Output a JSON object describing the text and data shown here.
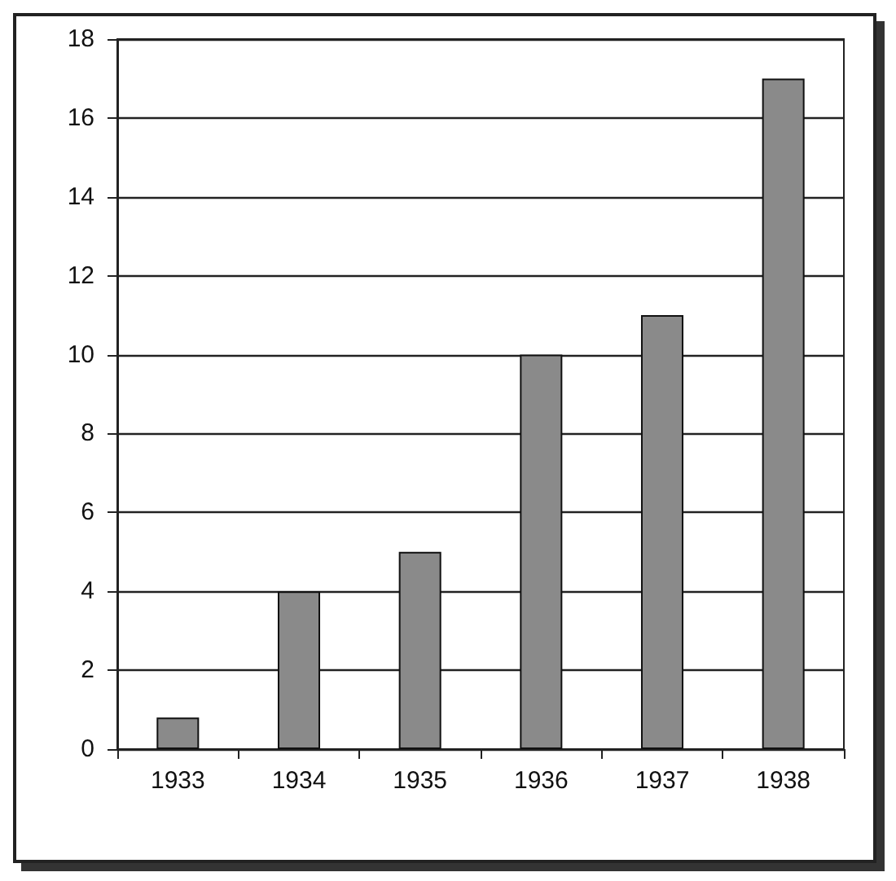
{
  "chart_data": {
    "type": "bar",
    "categories": [
      "1933",
      "1934",
      "1935",
      "1936",
      "1937",
      "1938"
    ],
    "values": [
      0.8,
      4,
      5,
      10,
      11,
      17
    ],
    "color": "#8a8a8a",
    "ylim": [
      0,
      18
    ],
    "yticks": [
      0,
      2,
      4,
      6,
      8,
      10,
      12,
      14,
      16,
      18
    ],
    "grid": "y"
  }
}
